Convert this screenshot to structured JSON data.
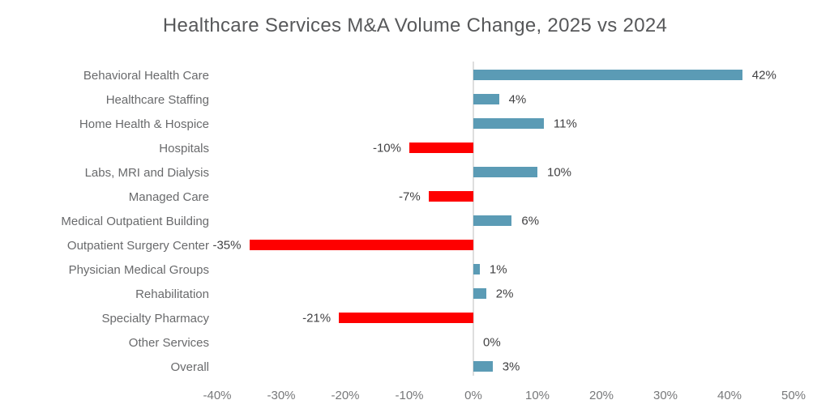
{
  "chart_data": {
    "type": "bar",
    "orientation": "horizontal",
    "title": "Healthcare Services M&A Volume Change, 2025 vs 2024",
    "categories": [
      "Behavioral Health Care",
      "Healthcare Staffing",
      "Home Health & Hospice",
      "Hospitals",
      "Labs, MRI and Dialysis",
      "Managed Care",
      "Medical Outpatient Building",
      "Outpatient Surgery Center",
      "Physician Medical Groups",
      "Rehabilitation",
      "Specialty Pharmacy",
      "Other Services",
      "Overall"
    ],
    "values": [
      42,
      4,
      11,
      -10,
      10,
      -7,
      6,
      -35,
      1,
      2,
      -21,
      0,
      3
    ],
    "value_labels": [
      "42%",
      "4%",
      "11%",
      "-10%",
      "10%",
      "-7%",
      "6%",
      "-35%",
      "1%",
      "2%",
      "-21%",
      "0%",
      "3%"
    ],
    "x_ticks": [
      "-40%",
      "-30%",
      "-20%",
      "-10%",
      "0%",
      "10%",
      "20%",
      "30%",
      "40%",
      "50%"
    ],
    "x_tick_values": [
      -40,
      -30,
      -20,
      -10,
      0,
      10,
      20,
      30,
      40,
      50
    ],
    "xlim": [
      -40,
      50
    ],
    "xlabel": "",
    "ylabel": "",
    "grid": "zero-line-only",
    "legend": "none",
    "colors": {
      "positive_bar": "#5b9bb5",
      "negative_bar": "#fe0000",
      "zero_line": "#dedede",
      "title_text": "#57585a",
      "category_text": "#696a6c",
      "value_text": "#414143",
      "tick_text": "#77787a",
      "background": "#ffffff"
    }
  }
}
